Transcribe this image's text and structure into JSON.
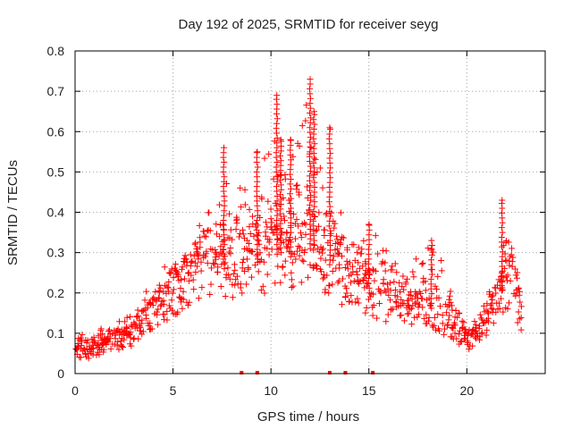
{
  "chart_data": {
    "type": "scatter",
    "title": "Day 192 of 2025, SRMTID for receiver seyg",
    "xlabel": "GPS time / hours",
    "ylabel": "SRMTID / TECUs",
    "xlim": [
      0,
      24
    ],
    "ylim": [
      0,
      0.8
    ],
    "xticks": [
      0,
      5,
      10,
      15,
      20
    ],
    "xtick_labels": [
      "0",
      "5",
      "10",
      "15",
      "20"
    ],
    "yticks": [
      0,
      0.1,
      0.2,
      0.3,
      0.4,
      0.5,
      0.6,
      0.7,
      0.8
    ],
    "ytick_labels": [
      "0",
      "0.1",
      "0.2",
      "0.3",
      "0.4",
      "0.5",
      "0.6",
      "0.7",
      "0.8"
    ],
    "grid": true,
    "marker": "+",
    "marker_color": "#ff0000",
    "envelope_hours": [
      0,
      0.5,
      1,
      1.5,
      2,
      2.5,
      3,
      3.5,
      4,
      4.5,
      5,
      5.5,
      6,
      6.5,
      7,
      7.5,
      8,
      8.5,
      9,
      9.5,
      10,
      10.5,
      11,
      11.5,
      12,
      12.5,
      13,
      13.5,
      14,
      14.5,
      15,
      15.5,
      16,
      16.5,
      17,
      17.5,
      18,
      18.5,
      19,
      19.5,
      20,
      20.5,
      21,
      21.5,
      22,
      22.5,
      22.8
    ],
    "envelope_mean": [
      0.06,
      0.05,
      0.06,
      0.07,
      0.08,
      0.09,
      0.1,
      0.13,
      0.15,
      0.17,
      0.2,
      0.22,
      0.24,
      0.27,
      0.28,
      0.26,
      0.26,
      0.28,
      0.29,
      0.28,
      0.29,
      0.3,
      0.29,
      0.3,
      0.31,
      0.3,
      0.27,
      0.24,
      0.22,
      0.22,
      0.2,
      0.19,
      0.18,
      0.17,
      0.16,
      0.16,
      0.17,
      0.15,
      0.13,
      0.11,
      0.08,
      0.09,
      0.13,
      0.17,
      0.23,
      0.2,
      0.13
    ],
    "envelope_max": [
      0.1,
      0.1,
      0.1,
      0.12,
      0.12,
      0.14,
      0.17,
      0.2,
      0.25,
      0.27,
      0.3,
      0.32,
      0.35,
      0.4,
      0.42,
      0.45,
      0.56,
      0.47,
      0.46,
      0.55,
      0.6,
      0.69,
      0.58,
      0.6,
      0.73,
      0.62,
      0.5,
      0.42,
      0.37,
      0.35,
      0.37,
      0.33,
      0.3,
      0.3,
      0.28,
      0.3,
      0.34,
      0.33,
      0.22,
      0.18,
      0.12,
      0.14,
      0.2,
      0.25,
      0.43,
      0.3,
      0.2
    ],
    "peaks": [
      {
        "x": 7.6,
        "y": 0.56
      },
      {
        "x": 9.3,
        "y": 0.55
      },
      {
        "x": 10.3,
        "y": 0.69
      },
      {
        "x": 10.5,
        "y": 0.58
      },
      {
        "x": 11.0,
        "y": 0.58
      },
      {
        "x": 12.0,
        "y": 0.73
      },
      {
        "x": 12.2,
        "y": 0.65
      },
      {
        "x": 13.0,
        "y": 0.61
      },
      {
        "x": 21.8,
        "y": 0.43
      },
      {
        "x": 18.2,
        "y": 0.33
      },
      {
        "x": 15.0,
        "y": 0.37
      }
    ],
    "zero_points_x": [
      8.5,
      9.3,
      13.0,
      13.8,
      15.2
    ]
  }
}
